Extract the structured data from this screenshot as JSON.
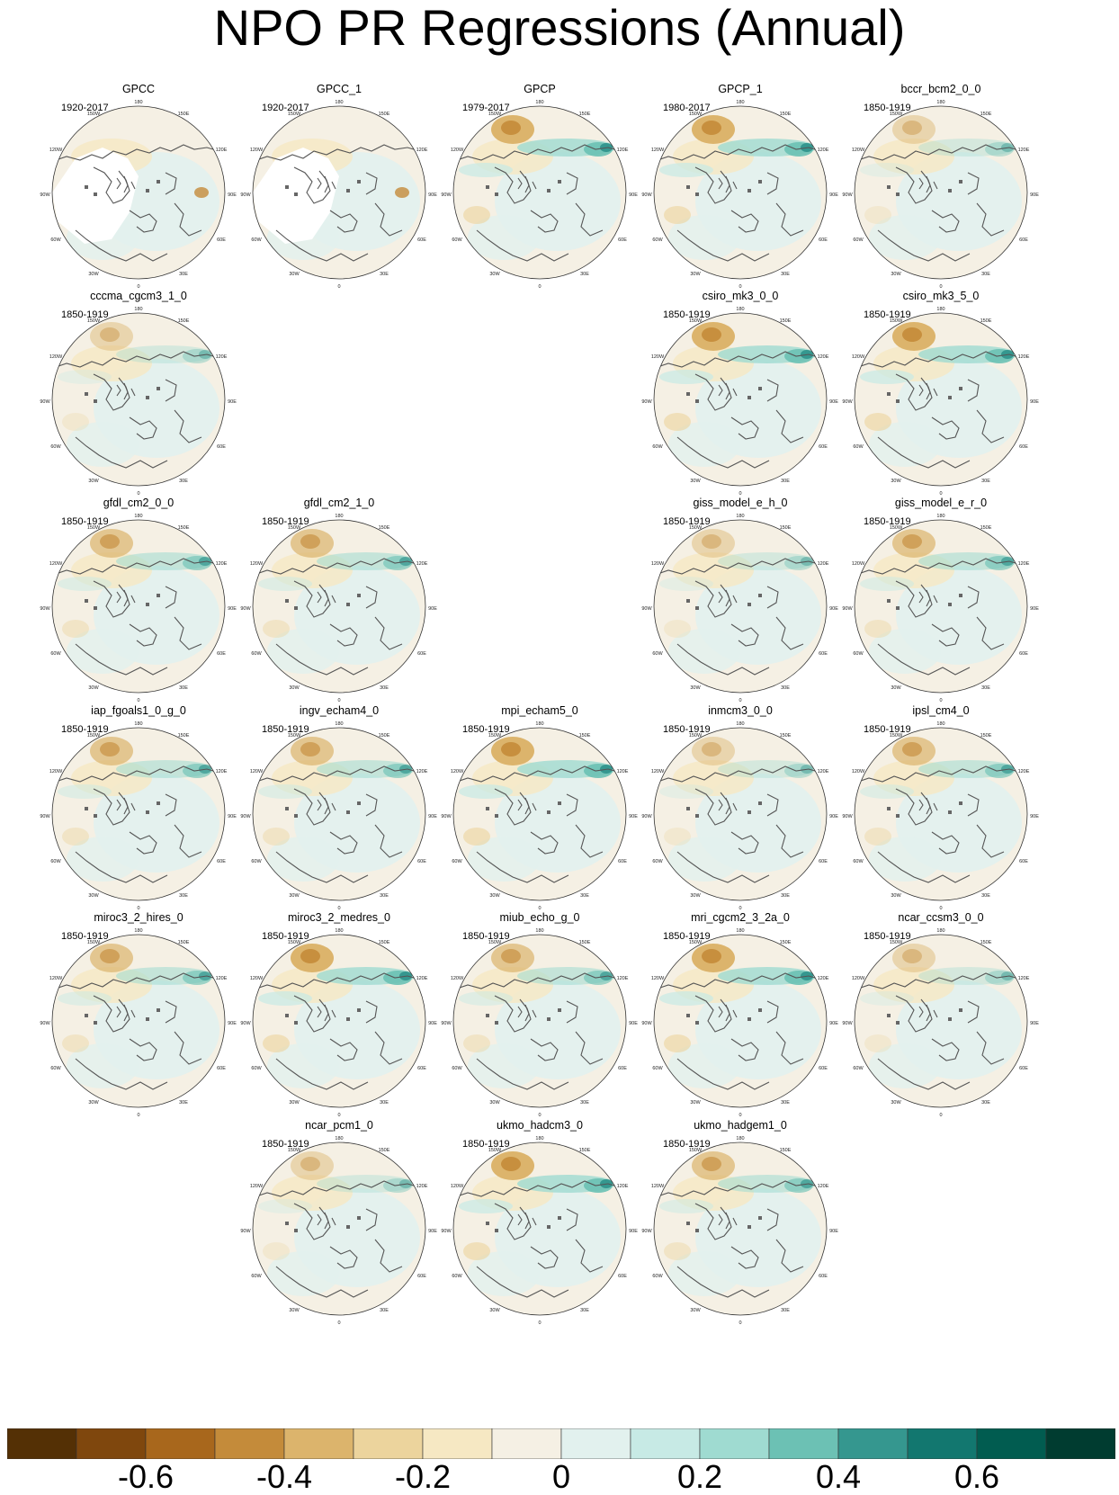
{
  "title": "NPO PR Regressions (Annual)",
  "map_labels": {
    "lon_180": "180",
    "lon_150w": "150W",
    "lon_150e": "150E",
    "lon_120w": "120W",
    "lon_120e": "120E",
    "lon_90w": "90W",
    "lon_90e": "90E",
    "lon_60w": "60W",
    "lon_60e": "60E",
    "lon_30w": "30W",
    "lon_30e": "30E",
    "lon_0": "0"
  },
  "panels": [
    {
      "name": "GPCC",
      "period": "1920-2017",
      "row": 0,
      "col": 0,
      "pattern": "gpcc"
    },
    {
      "name": "GPCC_1",
      "period": "1920-2017",
      "row": 0,
      "col": 1,
      "pattern": "gpcc"
    },
    {
      "name": "GPCP",
      "period": "1979-2017",
      "row": 0,
      "col": 2,
      "pattern": "strong"
    },
    {
      "name": "GPCP_1",
      "period": "1980-2017",
      "row": 0,
      "col": 3,
      "pattern": "strong"
    },
    {
      "name": "bccr_bcm2_0_0",
      "period": "1850-1919",
      "row": 0,
      "col": 4,
      "pattern": "weak"
    },
    {
      "name": "cccma_cgcm3_1_0",
      "period": "1850-1919",
      "row": 1,
      "col": 0,
      "pattern": "weak"
    },
    {
      "name": "csiro_mk3_0_0",
      "period": "1850-1919",
      "row": 1,
      "col": 3,
      "pattern": "strong"
    },
    {
      "name": "csiro_mk3_5_0",
      "period": "1850-1919",
      "row": 1,
      "col": 4,
      "pattern": "strong"
    },
    {
      "name": "gfdl_cm2_0_0",
      "period": "1850-1919",
      "row": 2,
      "col": 0,
      "pattern": "medium"
    },
    {
      "name": "gfdl_cm2_1_0",
      "period": "1850-1919",
      "row": 2,
      "col": 1,
      "pattern": "medium"
    },
    {
      "name": "giss_model_e_h_0",
      "period": "1850-1919",
      "row": 2,
      "col": 3,
      "pattern": "weak"
    },
    {
      "name": "giss_model_e_r_0",
      "period": "1850-1919",
      "row": 2,
      "col": 4,
      "pattern": "medium"
    },
    {
      "name": "iap_fgoals1_0_g_0",
      "period": "1850-1919",
      "row": 3,
      "col": 0,
      "pattern": "medium"
    },
    {
      "name": "ingv_echam4_0",
      "period": "1850-1919",
      "row": 3,
      "col": 1,
      "pattern": "medium"
    },
    {
      "name": "mpi_echam5_0",
      "period": "1850-1919",
      "row": 3,
      "col": 2,
      "pattern": "strong"
    },
    {
      "name": "inmcm3_0_0",
      "period": "1850-1919",
      "row": 3,
      "col": 3,
      "pattern": "weak"
    },
    {
      "name": "ipsl_cm4_0",
      "period": "1850-1919",
      "row": 3,
      "col": 4,
      "pattern": "medium"
    },
    {
      "name": "miroc3_2_hires_0",
      "period": "1850-1919",
      "row": 4,
      "col": 0,
      "pattern": "medium"
    },
    {
      "name": "miroc3_2_medres_0",
      "period": "1850-1919",
      "row": 4,
      "col": 1,
      "pattern": "strong"
    },
    {
      "name": "miub_echo_g_0",
      "period": "1850-1919",
      "row": 4,
      "col": 2,
      "pattern": "medium"
    },
    {
      "name": "mri_cgcm2_3_2a_0",
      "period": "1850-1919",
      "row": 4,
      "col": 3,
      "pattern": "strong"
    },
    {
      "name": "ncar_ccsm3_0_0",
      "period": "1850-1919",
      "row": 4,
      "col": 4,
      "pattern": "weak"
    },
    {
      "name": "ncar_pcm1_0",
      "period": "1850-1919",
      "row": 5,
      "col": 1,
      "pattern": "weak"
    },
    {
      "name": "ukmo_hadcm3_0",
      "period": "1850-1919",
      "row": 5,
      "col": 2,
      "pattern": "strong"
    },
    {
      "name": "ukmo_hadgem1_0",
      "period": "1850-1919",
      "row": 5,
      "col": 3,
      "pattern": "medium"
    }
  ],
  "colorbar": {
    "colors": [
      "#543005",
      "#7f470d",
      "#a8671c",
      "#c48b3a",
      "#dcb46c",
      "#ecd49d",
      "#f6e8c3",
      "#f5f0e4",
      "#e2f1ee",
      "#c7eae5",
      "#9fdbd1",
      "#6cc1b4",
      "#35978f",
      "#12776f",
      "#015c50",
      "#003c30"
    ],
    "tick_labels": [
      "-0.6",
      "-0.4",
      "-0.2",
      "0",
      "0.2",
      "0.4",
      "0.6"
    ]
  }
}
